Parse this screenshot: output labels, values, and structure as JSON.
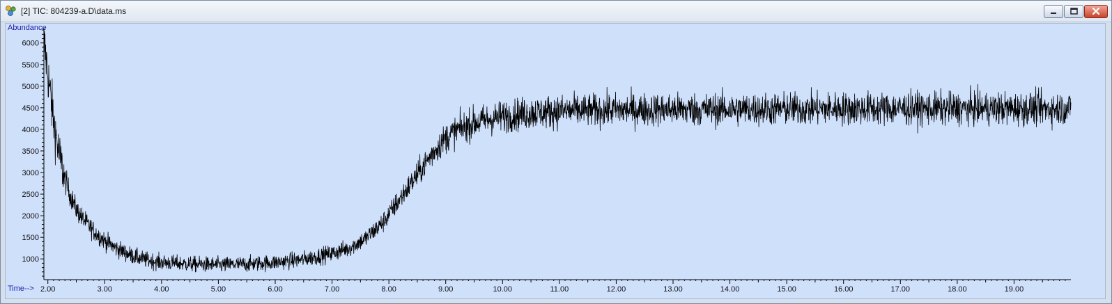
{
  "window": {
    "title": "[2] TIC: 804239-a.D\\data.ms",
    "buttons": [
      "minimize",
      "maximize",
      "close"
    ]
  },
  "colors": {
    "plot_background": "#cfe0fb",
    "trace": "#000000",
    "axis_label": "#1a1aa8"
  },
  "chart_data": {
    "type": "line",
    "title": "",
    "ylabel": "Abundance",
    "xlabel": "Time-->",
    "xlim": [
      1.93,
      20.0
    ],
    "ylim": [
      520,
      6350
    ],
    "x_ticks": [
      2.0,
      3.0,
      4.0,
      5.0,
      6.0,
      7.0,
      8.0,
      9.0,
      10.0,
      11.0,
      12.0,
      13.0,
      14.0,
      15.0,
      16.0,
      17.0,
      18.0,
      19.0
    ],
    "x_tick_labels": [
      "2.00",
      "3.00",
      "4.00",
      "5.00",
      "6.00",
      "7.00",
      "8.00",
      "9.00",
      "10.00",
      "11.00",
      "12.00",
      "13.00",
      "14.00",
      "15.00",
      "16.00",
      "17.00",
      "18.00",
      "19.00"
    ],
    "y_ticks": [
      1000,
      1500,
      2000,
      2500,
      3000,
      3500,
      4000,
      4500,
      5000,
      5500,
      6000
    ],
    "y_tick_labels": [
      "1000",
      "1500",
      "2000",
      "2500",
      "3000",
      "3500",
      "4000",
      "4500",
      "5000",
      "5500",
      "6000"
    ],
    "grid": false,
    "series": [
      {
        "noise_level": 190,
        "x": [
          1.93,
          2.0,
          2.1,
          2.2,
          2.3,
          2.4,
          2.5,
          2.6,
          2.8,
          3.0,
          3.2,
          3.4,
          3.6,
          3.8,
          4.0,
          4.5,
          5.0,
          5.5,
          6.0,
          6.5,
          7.0,
          7.3,
          7.6,
          7.9,
          8.2,
          8.5,
          8.8,
          9.0,
          9.2,
          9.5,
          10.0,
          10.5,
          11.0,
          12.0,
          13.0,
          14.0,
          15.0,
          16.0,
          17.0,
          18.0,
          19.0,
          20.0
        ],
        "y": [
          6050,
          5300,
          4200,
          3400,
          2850,
          2450,
          2150,
          1950,
          1650,
          1420,
          1250,
          1120,
          1020,
          960,
          920,
          880,
          860,
          880,
          920,
          990,
          1130,
          1250,
          1480,
          1850,
          2400,
          2950,
          3500,
          3800,
          3980,
          4150,
          4300,
          4380,
          4420,
          4450,
          4460,
          4460,
          4470,
          4480,
          4480,
          4480,
          4480,
          4480
        ]
      }
    ]
  }
}
